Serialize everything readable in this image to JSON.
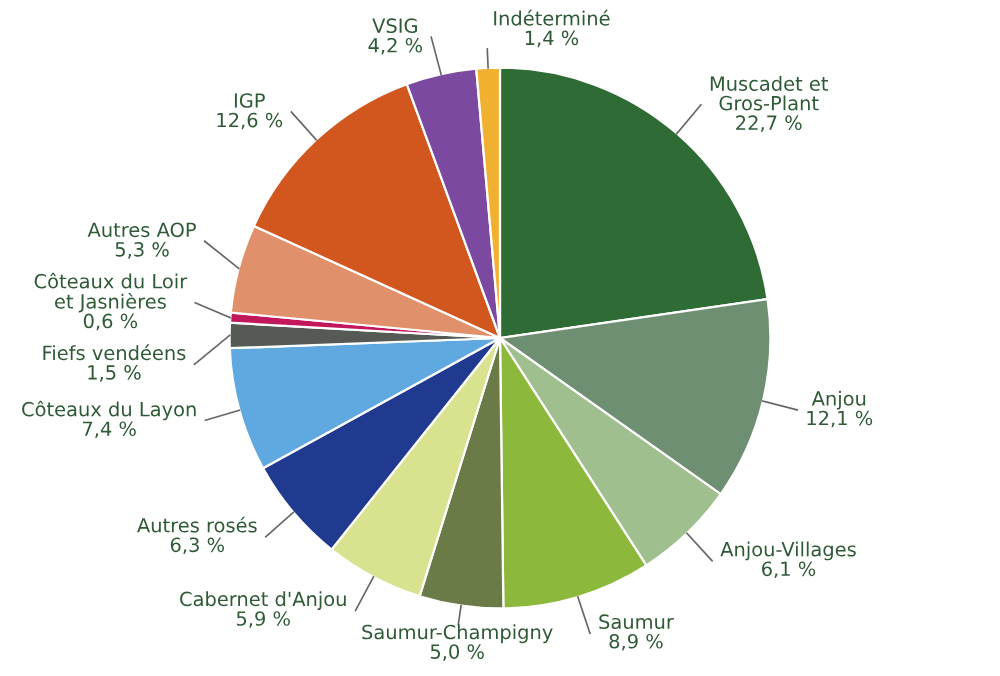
{
  "chart_data": {
    "type": "pie",
    "categories": [
      "Muscadet et\nGros-Plant",
      "Anjou",
      "Anjou-Villages",
      "Saumur",
      "Saumur-Champigny",
      "Cabernet d'Anjou",
      "Autres rosés",
      "Côteaux du Layon",
      "Fiefs vendéens",
      "Côteaux du Loir\net Jasnières",
      "Autres AOP",
      "IGP",
      "VSIG",
      "Indéterminé"
    ],
    "values": [
      22.7,
      12.1,
      6.1,
      8.9,
      5.0,
      5.9,
      6.3,
      7.4,
      1.5,
      0.6,
      5.3,
      12.6,
      4.2,
      1.4
    ],
    "value_labels": [
      "22,7 %",
      "12,1 %",
      "6,1 %",
      "8,9 %",
      "5,0 %",
      "5,9 %",
      "6,3 %",
      "7,4 %",
      "1,5 %",
      "0,6 %",
      "5,3 %",
      "12,6 %",
      "4,2 %",
      "1,4 %"
    ],
    "colors": [
      "#2f6b35",
      "#6f8f72",
      "#9fc08e",
      "#8cb83c",
      "#6b7b47",
      "#d9e28e",
      "#1f3a8f",
      "#5fa8e0",
      "#555a55",
      "#c2185b",
      "#e0906a",
      "#d2571e",
      "#7b4aa0",
      "#f0b030"
    ],
    "legend": false
  }
}
